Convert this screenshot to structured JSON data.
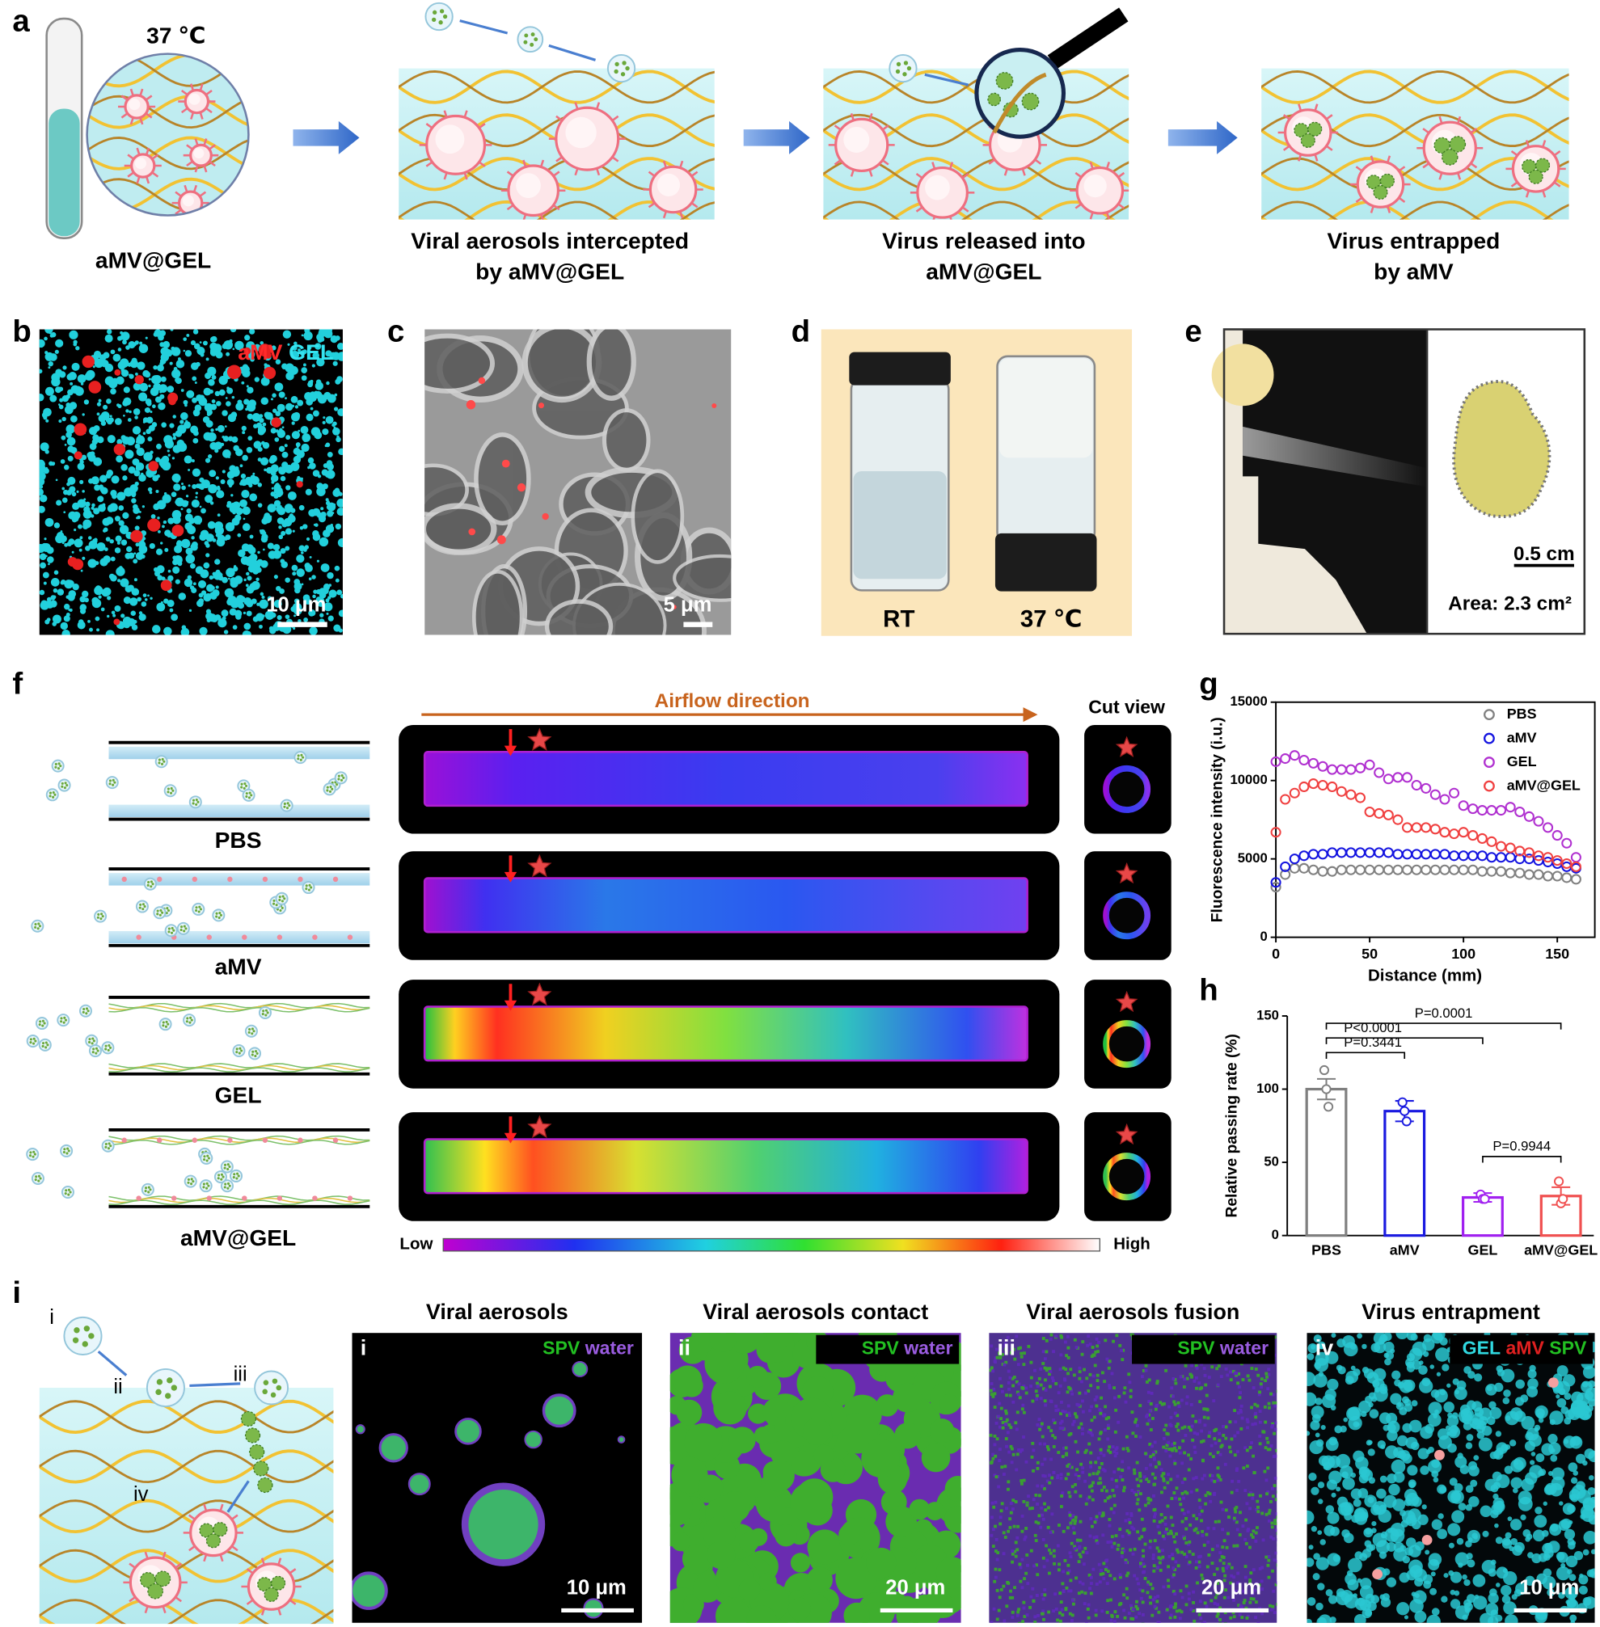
{
  "panel_labels": [
    "a",
    "b",
    "c",
    "d",
    "e",
    "f",
    "g",
    "h",
    "i"
  ],
  "panel_a": {
    "temperature": "37 ℃",
    "tube_label": "aMV@GEL",
    "steps": [
      [
        "Viral aerosols intercepted",
        "by aMV@GEL"
      ],
      [
        "Virus released into",
        "aMV@GEL"
      ],
      [
        "Virus entrapped",
        "by aMV"
      ]
    ]
  },
  "panel_b": {
    "legend": [
      "aMV",
      "GEL"
    ],
    "scale_bar": "10 μm"
  },
  "panel_c": {
    "scale_bar": "5 μm"
  },
  "panel_d": {
    "labels": [
      "RT",
      "37 ℃"
    ]
  },
  "panel_e": {
    "scale_bar": "0.5 cm",
    "area": "Area: 2.3 cm²"
  },
  "panel_f": {
    "airflow": "Airflow direction",
    "cut_view": "Cut view",
    "groups": [
      "PBS",
      "aMV",
      "GEL",
      "aMV@GEL"
    ],
    "colorbar": [
      "Low",
      "High"
    ]
  },
  "panel_i": {
    "schematic_labels": [
      "i",
      "ii",
      "iii",
      "iv"
    ],
    "images": [
      {
        "roman": "i",
        "title": "Viral aerosols",
        "legend": [
          "SPV",
          "water"
        ],
        "scale_bar": "10 μm"
      },
      {
        "roman": "ii",
        "title": "Viral aerosols contact",
        "legend": [
          "SPV",
          "water"
        ],
        "scale_bar": "20 μm"
      },
      {
        "roman": "iii",
        "title": "Viral aerosols fusion",
        "legend": [
          "SPV",
          "water"
        ],
        "scale_bar": "20 μm"
      },
      {
        "roman": "iv",
        "title": "Virus entrapment",
        "legend": [
          "GEL",
          "aMV",
          "SPV"
        ],
        "scale_bar": "10 μm"
      }
    ]
  },
  "chart_data": [
    {
      "type": "scatter",
      "x_label": "Distance (mm)",
      "y_label": "Fluorescence intensity (i.u.)",
      "x": [
        0,
        5,
        10,
        15,
        20,
        25,
        30,
        35,
        40,
        45,
        50,
        55,
        60,
        65,
        70,
        75,
        80,
        85,
        90,
        95,
        100,
        105,
        110,
        115,
        120,
        125,
        130,
        135,
        140,
        145,
        150,
        155,
        160
      ],
      "series": [
        {
          "name": "PBS",
          "color": "#808080",
          "values": [
            3200,
            4000,
            4400,
            4400,
            4300,
            4200,
            4200,
            4300,
            4300,
            4300,
            4300,
            4300,
            4300,
            4300,
            4300,
            4300,
            4300,
            4300,
            4300,
            4300,
            4300,
            4300,
            4200,
            4200,
            4200,
            4100,
            4100,
            4000,
            4000,
            3900,
            3900,
            3800,
            3700
          ]
        },
        {
          "name": "aMV",
          "color": "#1414e0",
          "values": [
            3500,
            4500,
            5000,
            5200,
            5300,
            5300,
            5400,
            5400,
            5400,
            5400,
            5400,
            5400,
            5400,
            5300,
            5300,
            5300,
            5300,
            5300,
            5300,
            5200,
            5200,
            5200,
            5200,
            5100,
            5100,
            5100,
            5000,
            5000,
            4900,
            4800,
            4700,
            4500,
            4400
          ]
        },
        {
          "name": "GEL",
          "color": "#b030d0",
          "values": [
            11200,
            11400,
            11600,
            11300,
            11100,
            10900,
            10700,
            10700,
            10700,
            10800,
            11000,
            10500,
            10100,
            10200,
            10200,
            9700,
            9500,
            9100,
            8800,
            9200,
            8400,
            8200,
            8100,
            8100,
            8100,
            8300,
            8000,
            7700,
            7400,
            7000,
            6500,
            6000,
            5100
          ]
        },
        {
          "name": "aMV@GEL",
          "color": "#f04040",
          "values": [
            6700,
            8800,
            9200,
            9600,
            9800,
            9700,
            9600,
            9300,
            9100,
            8900,
            8000,
            7900,
            7800,
            7500,
            7000,
            7000,
            7000,
            6900,
            6700,
            6600,
            6700,
            6500,
            6300,
            6100,
            5800,
            5700,
            5500,
            5400,
            5200,
            5100,
            4900,
            4700,
            4500
          ]
        }
      ],
      "xlim": [
        0,
        170
      ],
      "ylim": [
        0,
        15000
      ],
      "xticks": [
        0,
        50,
        100,
        150
      ],
      "yticks": [
        0,
        5000,
        10000,
        15000
      ],
      "legend": "upper right"
    },
    {
      "type": "bar",
      "y_label": "Relative passing rate (%)",
      "categories": [
        "PBS",
        "aMV",
        "GEL",
        "aMV@GEL"
      ],
      "values": [
        100,
        85,
        26,
        27
      ],
      "errors": [
        7,
        7,
        3,
        6
      ],
      "points": [
        [
          113,
          100,
          88
        ],
        [
          91,
          85,
          78
        ],
        [
          28,
          25,
          25
        ],
        [
          37,
          22,
          25
        ]
      ],
      "colors": [
        "#7f7f7f",
        "#1a1ae0",
        "#a020f0",
        "#f05050"
      ],
      "annotations": [
        "P=0.3441",
        "P<0.0001",
        "P=0.0001",
        "P=0.9944"
      ],
      "ylim": [
        0,
        150
      ],
      "yticks": [
        0,
        50,
        100,
        150
      ]
    }
  ]
}
